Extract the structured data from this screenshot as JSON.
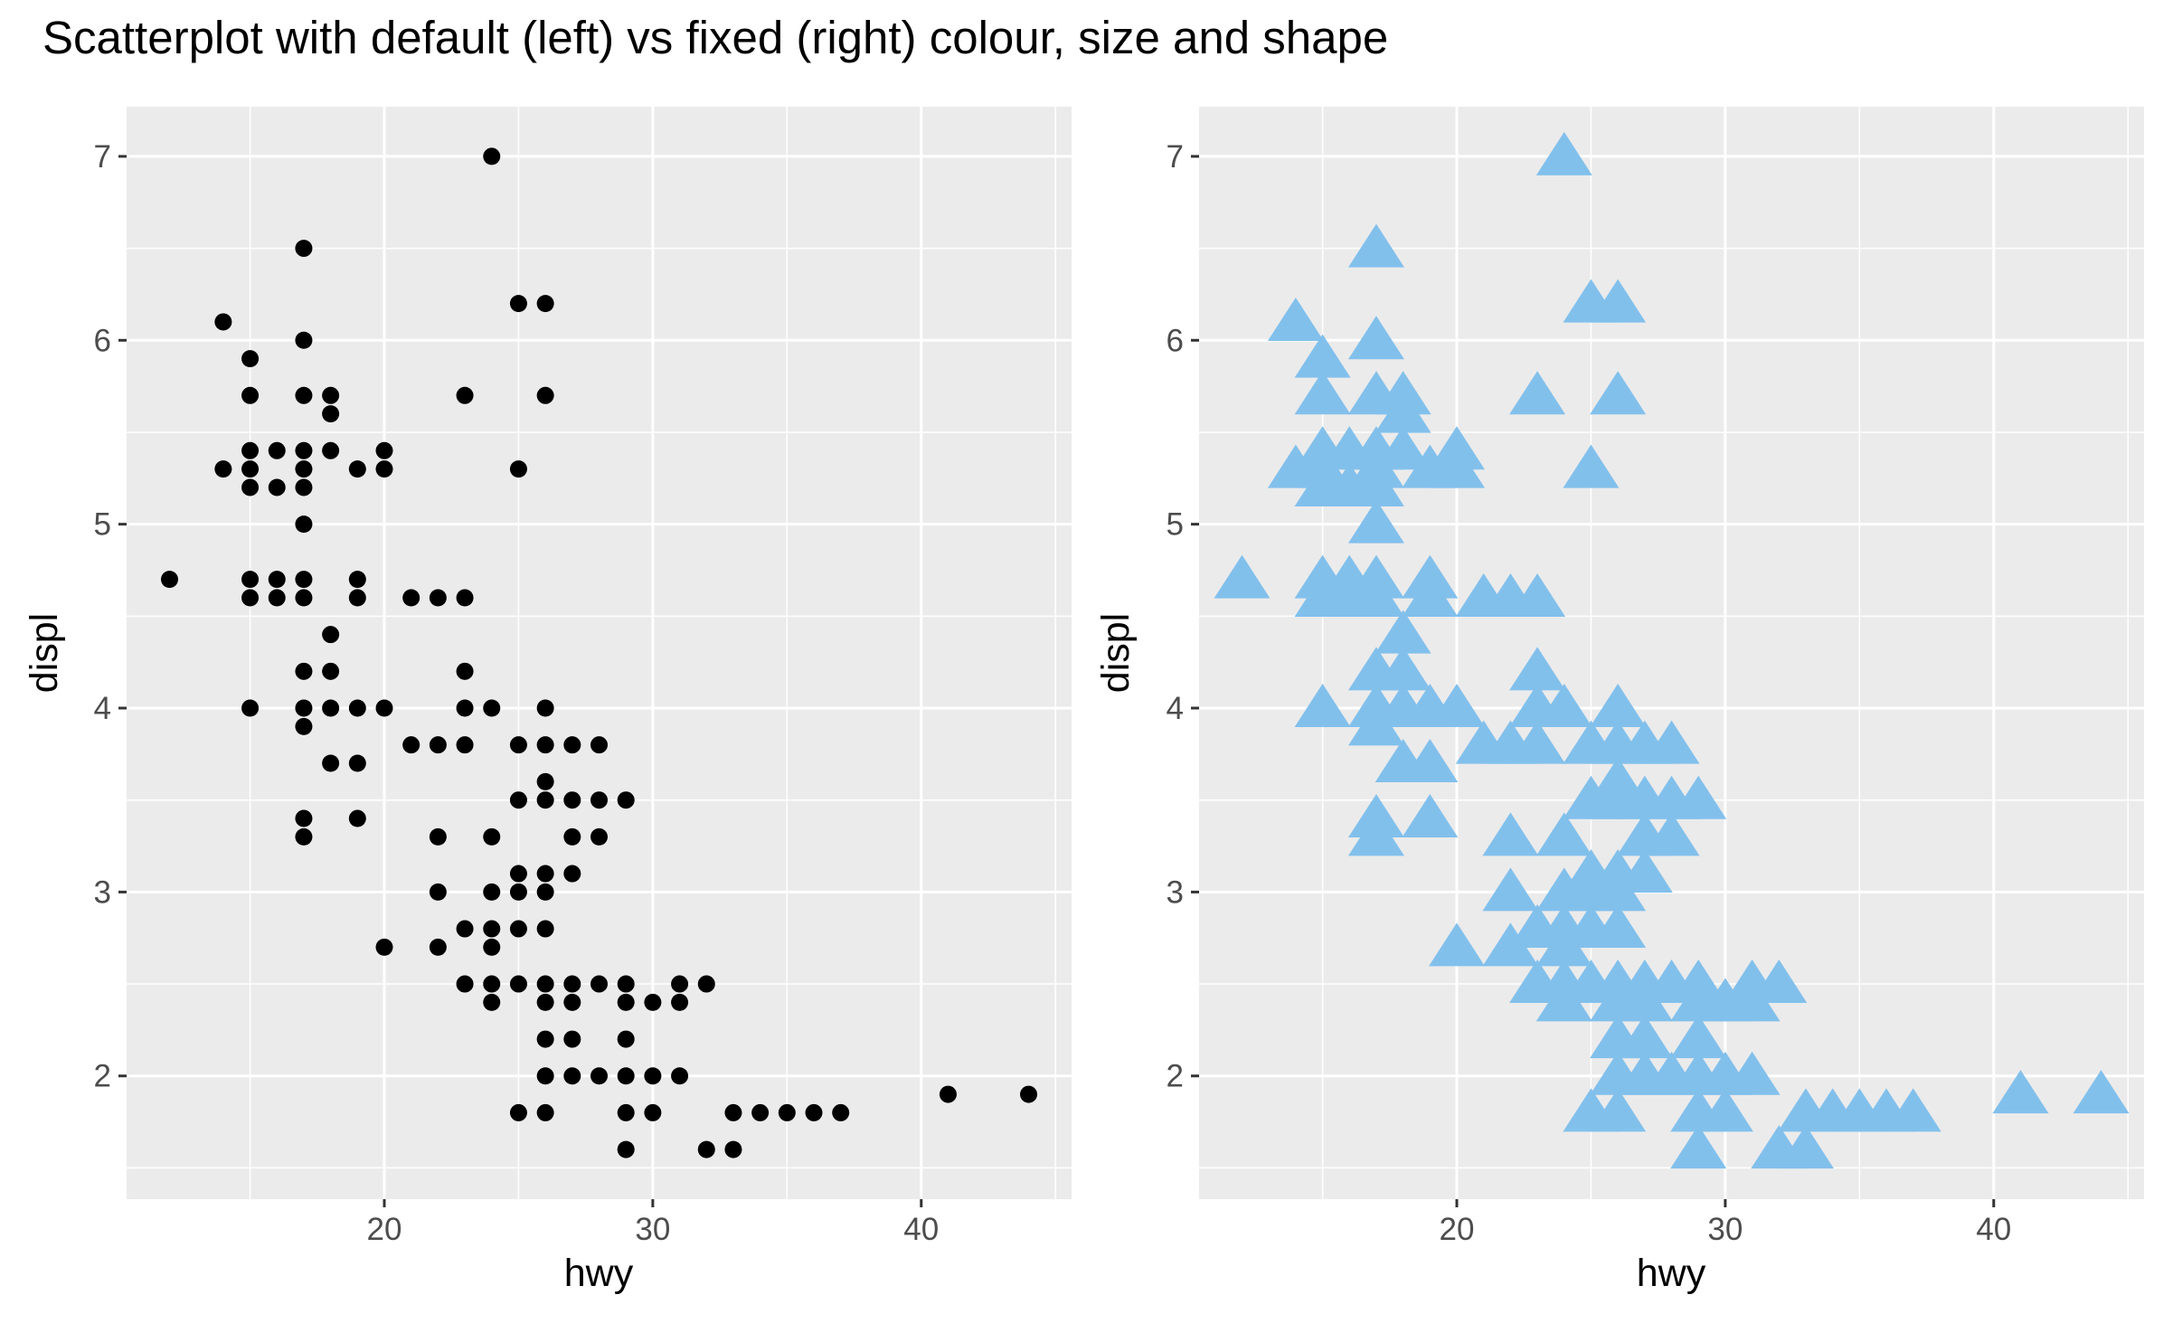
{
  "title": "Scatterplot with default (left) vs fixed (right) colour, size and shape",
  "chart_data": [
    {
      "type": "scatter",
      "xlabel": "hwy",
      "ylabel": "displ",
      "xlim": [
        10.4,
        45.6
      ],
      "ylim": [
        1.33,
        7.27
      ],
      "xticks": [
        20,
        30,
        40
      ],
      "yticks": [
        2,
        3,
        4,
        5,
        6,
        7
      ],
      "grid": true,
      "marker": "circle",
      "marker_size": "default",
      "color": "#000000",
      "points": [
        [
          12,
          4.7
        ],
        [
          14,
          5.3
        ],
        [
          14,
          6.1
        ],
        [
          15,
          4.0
        ],
        [
          15,
          4.6
        ],
        [
          15,
          4.7
        ],
        [
          15,
          5.2
        ],
        [
          15,
          5.3
        ],
        [
          15,
          5.4
        ],
        [
          15,
          5.7
        ],
        [
          15,
          5.9
        ],
        [
          16,
          4.6
        ],
        [
          16,
          4.7
        ],
        [
          16,
          5.2
        ],
        [
          16,
          5.4
        ],
        [
          17,
          3.3
        ],
        [
          17,
          3.4
        ],
        [
          17,
          3.9
        ],
        [
          17,
          4.0
        ],
        [
          17,
          4.2
        ],
        [
          17,
          4.6
        ],
        [
          17,
          4.7
        ],
        [
          17,
          5.0
        ],
        [
          17,
          5.2
        ],
        [
          17,
          5.3
        ],
        [
          17,
          5.4
        ],
        [
          17,
          5.7
        ],
        [
          17,
          6.0
        ],
        [
          17,
          6.5
        ],
        [
          18,
          3.7
        ],
        [
          18,
          4.0
        ],
        [
          18,
          4.2
        ],
        [
          18,
          4.4
        ],
        [
          18,
          5.4
        ],
        [
          18,
          5.6
        ],
        [
          18,
          5.7
        ],
        [
          19,
          3.4
        ],
        [
          19,
          3.7
        ],
        [
          19,
          4.0
        ],
        [
          19,
          4.6
        ],
        [
          19,
          4.7
        ],
        [
          19,
          5.3
        ],
        [
          20,
          2.7
        ],
        [
          20,
          4.0
        ],
        [
          20,
          5.3
        ],
        [
          20,
          5.4
        ],
        [
          21,
          3.8
        ],
        [
          21,
          4.6
        ],
        [
          22,
          2.7
        ],
        [
          22,
          3.0
        ],
        [
          22,
          3.3
        ],
        [
          22,
          3.8
        ],
        [
          22,
          4.6
        ],
        [
          23,
          2.5
        ],
        [
          23,
          2.8
        ],
        [
          23,
          3.8
        ],
        [
          23,
          4.0
        ],
        [
          23,
          4.2
        ],
        [
          23,
          4.6
        ],
        [
          23,
          5.7
        ],
        [
          24,
          2.4
        ],
        [
          24,
          2.5
        ],
        [
          24,
          2.7
        ],
        [
          24,
          2.8
        ],
        [
          24,
          3.0
        ],
        [
          24,
          3.3
        ],
        [
          24,
          4.0
        ],
        [
          24,
          7.0
        ],
        [
          25,
          1.8
        ],
        [
          25,
          2.5
        ],
        [
          25,
          2.8
        ],
        [
          25,
          3.0
        ],
        [
          25,
          3.1
        ],
        [
          25,
          3.5
        ],
        [
          25,
          3.8
        ],
        [
          25,
          5.3
        ],
        [
          25,
          6.2
        ],
        [
          26,
          1.8
        ],
        [
          26,
          2.0
        ],
        [
          26,
          2.2
        ],
        [
          26,
          2.4
        ],
        [
          26,
          2.5
        ],
        [
          26,
          2.8
        ],
        [
          26,
          3.0
        ],
        [
          26,
          3.1
        ],
        [
          26,
          3.5
        ],
        [
          26,
          3.6
        ],
        [
          26,
          3.8
        ],
        [
          26,
          4.0
        ],
        [
          26,
          5.7
        ],
        [
          26,
          6.2
        ],
        [
          27,
          2.0
        ],
        [
          27,
          2.2
        ],
        [
          27,
          2.4
        ],
        [
          27,
          2.5
        ],
        [
          27,
          3.1
        ],
        [
          27,
          3.3
        ],
        [
          27,
          3.5
        ],
        [
          27,
          3.8
        ],
        [
          28,
          2.0
        ],
        [
          28,
          2.5
        ],
        [
          28,
          3.3
        ],
        [
          28,
          3.5
        ],
        [
          28,
          3.8
        ],
        [
          29,
          1.6
        ],
        [
          29,
          1.8
        ],
        [
          29,
          2.0
        ],
        [
          29,
          2.2
        ],
        [
          29,
          2.4
        ],
        [
          29,
          2.5
        ],
        [
          29,
          3.5
        ],
        [
          30,
          1.8
        ],
        [
          30,
          2.0
        ],
        [
          30,
          2.4
        ],
        [
          31,
          2.0
        ],
        [
          31,
          2.4
        ],
        [
          31,
          2.5
        ],
        [
          32,
          1.6
        ],
        [
          32,
          2.5
        ],
        [
          33,
          1.6
        ],
        [
          33,
          1.8
        ],
        [
          34,
          1.8
        ],
        [
          35,
          1.8
        ],
        [
          36,
          1.8
        ],
        [
          37,
          1.8
        ],
        [
          41,
          1.9
        ],
        [
          44,
          1.9
        ]
      ]
    },
    {
      "type": "scatter",
      "xlabel": "hwy",
      "ylabel": "displ",
      "xlim": [
        10.4,
        45.6
      ],
      "ylim": [
        1.33,
        7.27
      ],
      "xticks": [
        20,
        30,
        40
      ],
      "yticks": [
        2,
        3,
        4,
        5,
        6,
        7
      ],
      "grid": true,
      "marker": "triangle",
      "marker_size": "large",
      "color": "#82c0ec",
      "points_same_as_left_panel": true
    }
  ]
}
